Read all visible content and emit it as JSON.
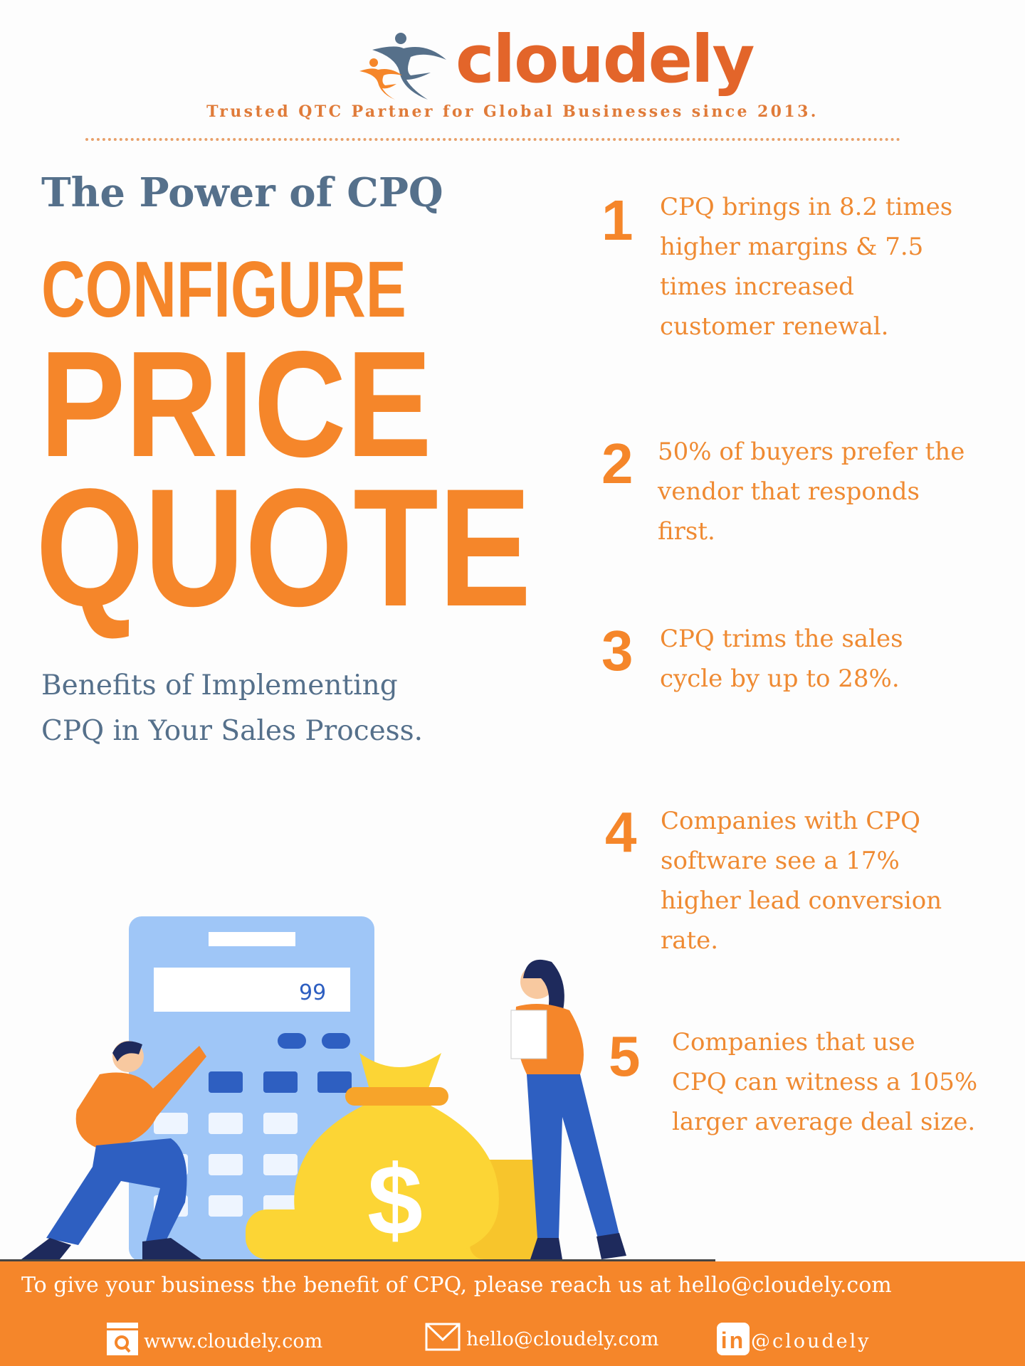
{
  "brand": {
    "name": "cloudely",
    "tagline": "Trusted QTC Partner for Global Businesses since 2013.",
    "colors": {
      "orange": "#f5862a",
      "slate": "#55708b",
      "logo_orange": "#e3652a"
    }
  },
  "hero": {
    "subtitle": "The Power of CPQ",
    "line1": "CONFIGURE",
    "line2": "PRICE",
    "line3": "QUOTE",
    "benefits_line1": "Benefits of Implementing",
    "benefits_line2": "CPQ in Your Sales Process."
  },
  "stats": [
    {
      "number": "1",
      "lines": [
        "CPQ brings in 8.2 times",
        "higher margins & 7.5",
        "times increased",
        "customer renewal."
      ]
    },
    {
      "number": "2",
      "lines": [
        "50% of buyers prefer the",
        "vendor that responds",
        "first."
      ]
    },
    {
      "number": "3",
      "lines": [
        "CPQ trims the sales",
        "cycle by up to 28%."
      ]
    },
    {
      "number": "4",
      "lines": [
        "Companies with CPQ",
        "software see a 17%",
        "higher lead conversion",
        "rate."
      ]
    },
    {
      "number": "5",
      "lines": [
        "Companies that use",
        "CPQ can witness a 105%",
        "larger average deal size."
      ]
    }
  ],
  "illustration": {
    "calculator_display": "99"
  },
  "footer": {
    "cta": "To give your business the benefit of CPQ, please reach us at hello@cloudely.com",
    "website": "www.cloudely.com",
    "email": "hello@cloudely.com",
    "linkedin": "@cloudely",
    "icons": [
      "web-search-icon",
      "mail-icon",
      "linkedin-icon"
    ]
  }
}
